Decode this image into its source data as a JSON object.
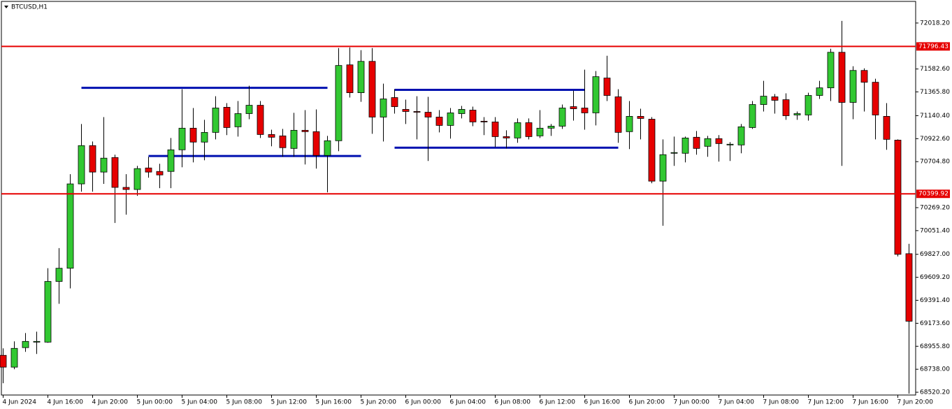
{
  "chart_data": {
    "type": "candlestick",
    "title": "BTCUSD,H1",
    "up_color": "#32c832",
    "down_color": "#e60000",
    "categories": [
      "4 Jun 2024",
      null,
      null,
      null,
      "4 Jun 16:00",
      null,
      null,
      null,
      "4 Jun 20:00",
      null,
      null,
      null,
      "5 Jun 00:00",
      null,
      null,
      null,
      "5 Jun 04:00",
      null,
      null,
      null,
      "5 Jun 08:00",
      null,
      null,
      null,
      "5 Jun 12:00",
      null,
      null,
      null,
      "5 Jun 16:00",
      null,
      null,
      null,
      "5 Jun 20:00",
      null,
      null,
      null,
      "6 Jun 00:00",
      null,
      null,
      null,
      "6 Jun 04:00",
      null,
      null,
      null,
      "6 Jun 08:00",
      null,
      null,
      null,
      "6 Jun 12:00",
      null,
      null,
      null,
      "6 Jun 16:00",
      null,
      null,
      null,
      "6 Jun 20:00",
      null,
      null,
      null,
      "7 Jun 00:00",
      null,
      null,
      null,
      "7 Jun 04:00",
      null,
      null,
      null,
      "7 Jun 08:00",
      null,
      null,
      null,
      "7 Jun 12:00",
      null,
      null,
      null,
      "7 Jun 16:00",
      null,
      null,
      null,
      "7 Jun 20:00",
      null
    ],
    "open": [
      68870,
      68758,
      68943,
      68995,
      68995,
      69570,
      69695,
      70494,
      70857,
      70606,
      70744,
      70461,
      70441,
      70645,
      70612,
      70612,
      70817,
      71022,
      70890,
      70982,
      71220,
      71035,
      71160,
      71239,
      70962,
      70949,
      70830,
      71002,
      70989,
      70764,
      70903,
      71622,
      71358,
      71655,
      71127,
      71312,
      71200,
      71180,
      71173,
      71127,
      71048,
      71160,
      71193,
      71088,
      71081,
      70942,
      70929,
      71074,
      70949,
      71022,
      71041,
      71226,
      71213,
      71167,
      71497,
      71319,
      70989,
      71134,
      71107,
      70520,
      70784,
      70784,
      70936,
      70850,
      70923,
      70863,
      70863,
      71028,
      71246,
      71319,
      71292,
      71147,
      71147,
      71332,
      71404,
      71741,
      71266,
      71569,
      71457,
      71134,
      70909,
      69833
    ],
    "high": [
      68936,
      69002,
      69081,
      69094,
      69695,
      69886,
      70586,
      71061,
      70896,
      71127,
      70771,
      70586,
      70665,
      70751,
      70685,
      70929,
      71391,
      71213,
      71101,
      71325,
      71259,
      71279,
      71424,
      71279,
      71008,
      71015,
      71167,
      71193,
      71200,
      70949,
      71781,
      71787,
      71761,
      71781,
      71444,
      71391,
      71292,
      71325,
      71319,
      71193,
      71213,
      71233,
      71226,
      71127,
      71127,
      71002,
      71114,
      71114,
      71193,
      71061,
      71246,
      71378,
      71576,
      71563,
      71708,
      71391,
      71279,
      71206,
      71127,
      70916,
      70942,
      70942,
      70995,
      70949,
      70956,
      70890,
      71061,
      71279,
      71470,
      71345,
      71352,
      71180,
      71358,
      71470,
      71774,
      72038,
      71609,
      71589,
      71490,
      71259,
      70916,
      69926
    ],
    "low": [
      68606,
      68738,
      68903,
      68883,
      68989,
      69358,
      69504,
      70421,
      70421,
      70494,
      70124,
      70203,
      70381,
      70553,
      70454,
      70454,
      70652,
      70698,
      70718,
      70916,
      70956,
      70942,
      71107,
      70929,
      70850,
      70751,
      70751,
      70678,
      70639,
      70414,
      70804,
      71312,
      71272,
      70969,
      70896,
      71160,
      71061,
      70916,
      70711,
      70982,
      70923,
      71114,
      71041,
      70956,
      70843,
      70830,
      70883,
      70916,
      70929,
      70949,
      71015,
      71094,
      71008,
      71048,
      71279,
      70883,
      70824,
      70916,
      70500,
      70098,
      70665,
      70698,
      70771,
      70751,
      70705,
      70711,
      70784,
      71015,
      71180,
      71160,
      71101,
      71101,
      71094,
      71299,
      71279,
      70665,
      71107,
      71180,
      70916,
      70817,
      69807,
      68507
    ],
    "close": [
      68758,
      68936,
      69002,
      69002,
      69570,
      69695,
      70494,
      70857,
      70606,
      70738,
      70461,
      70441,
      70639,
      70606,
      70579,
      70817,
      71022,
      70890,
      70982,
      71213,
      71028,
      71160,
      71239,
      70962,
      70936,
      70837,
      71002,
      70989,
      70764,
      70903,
      71616,
      71358,
      71655,
      71127,
      71299,
      71226,
      71180,
      71173,
      71127,
      71048,
      71167,
      71200,
      71081,
      71081,
      70942,
      70929,
      71074,
      70942,
      71022,
      71041,
      71213,
      71206,
      71167,
      71510,
      71332,
      70982,
      71134,
      71114,
      70520,
      70771,
      70791,
      70929,
      70830,
      70923,
      70876,
      70870,
      71035,
      71246,
      71325,
      71286,
      71140,
      71160,
      71332,
      71404,
      71741,
      71266,
      71569,
      71457,
      71147,
      70916,
      69827,
      69193
    ],
    "hlines": [
      {
        "value": 71796.43,
        "color": "#e60000"
      },
      {
        "value": 70399.92,
        "color": "#e60000"
      }
    ],
    "segments": [
      {
        "value": 71404,
        "from": 7,
        "to": 29,
        "color": "#0010b0"
      },
      {
        "value": 70758,
        "from": 13,
        "to": 32,
        "color": "#0010b0"
      },
      {
        "value": 71385,
        "from": 35,
        "to": 52,
        "color": "#0010b0"
      },
      {
        "value": 70837,
        "from": 35,
        "to": 55,
        "color": "#0010b0"
      }
    ],
    "ylim": [
      68494,
      72223
    ],
    "yticks": [
      {
        "value": 72018.2,
        "label": "72018.20"
      },
      {
        "value": 71582.6,
        "label": "71582.60"
      },
      {
        "value": 71365.8,
        "label": "71365.80"
      },
      {
        "value": 71140.4,
        "label": "71140.40"
      },
      {
        "value": 70922.6,
        "label": "70922.60"
      },
      {
        "value": 70704.8,
        "label": "70704.80"
      },
      {
        "value": 70269.2,
        "label": "70269.20"
      },
      {
        "value": 70051.4,
        "label": "70051.40"
      },
      {
        "value": 69827,
        "label": "69827.00"
      },
      {
        "value": 69609.2,
        "label": "69609.20"
      },
      {
        "value": 69391.4,
        "label": "69391.40"
      },
      {
        "value": 69173.6,
        "label": "69173.60"
      },
      {
        "value": 68955.8,
        "label": "68955.80"
      },
      {
        "value": 68738,
        "label": "68738.00"
      },
      {
        "value": 68520.2,
        "label": "68520.20"
      }
    ]
  }
}
